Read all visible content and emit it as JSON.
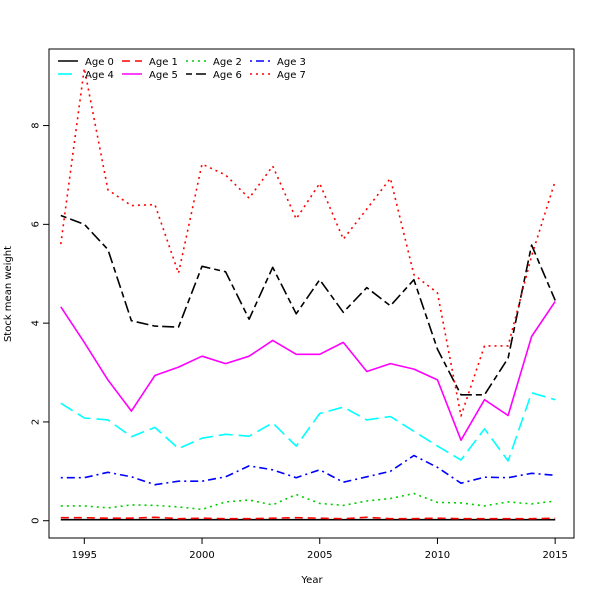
{
  "chart_data": {
    "type": "line",
    "title": "",
    "xlabel": "Year",
    "ylabel": "Stock mean weight",
    "xlim": [
      1993.5,
      2015.8
    ],
    "ylim": [
      -0.35,
      9.55
    ],
    "x_ticks": [
      1995,
      2000,
      2005,
      2010,
      2015
    ],
    "y_ticks": [
      0,
      2,
      4,
      6,
      8
    ],
    "grid": false,
    "legend_position": "top-left",
    "x": [
      1994,
      1995,
      1996,
      1997,
      1998,
      1999,
      2000,
      2001,
      2002,
      2003,
      2004,
      2005,
      2006,
      2007,
      2008,
      2009,
      2010,
      2011,
      2012,
      2013,
      2014,
      2015
    ],
    "series": [
      {
        "name": "Age 0",
        "color": "#000000",
        "dash": "solid",
        "values": [
          0.02,
          0.02,
          0.02,
          0.02,
          0.02,
          0.02,
          0.02,
          0.02,
          0.02,
          0.02,
          0.02,
          0.02,
          0.02,
          0.02,
          0.02,
          0.02,
          0.02,
          0.02,
          0.02,
          0.02,
          0.02,
          0.02
        ]
      },
      {
        "name": "Age 1",
        "color": "#ff0000",
        "dash": "dashed",
        "values": [
          0.06,
          0.06,
          0.05,
          0.05,
          0.07,
          0.04,
          0.05,
          0.04,
          0.04,
          0.05,
          0.06,
          0.05,
          0.04,
          0.07,
          0.04,
          0.04,
          0.05,
          0.04,
          0.04,
          0.04,
          0.04,
          0.05
        ]
      },
      {
        "name": "Age 2",
        "color": "#00cd00",
        "dash": "dotted",
        "values": [
          0.3,
          0.3,
          0.26,
          0.32,
          0.31,
          0.28,
          0.23,
          0.38,
          0.42,
          0.32,
          0.53,
          0.35,
          0.31,
          0.4,
          0.45,
          0.55,
          0.37,
          0.36,
          0.3,
          0.38,
          0.34,
          0.4
        ]
      },
      {
        "name": "Age 3",
        "color": "#0000ff",
        "dash": "dotdash",
        "values": [
          0.87,
          0.87,
          0.98,
          0.89,
          0.73,
          0.8,
          0.8,
          0.89,
          1.11,
          1.03,
          0.87,
          1.03,
          0.78,
          0.89,
          1.0,
          1.32,
          1.08,
          0.76,
          0.88,
          0.87,
          0.96,
          0.92
        ]
      },
      {
        "name": "Age 4",
        "color": "#00ffff",
        "dash": "longdash",
        "values": [
          2.38,
          2.08,
          2.04,
          1.7,
          1.89,
          1.46,
          1.67,
          1.75,
          1.71,
          1.98,
          1.51,
          2.17,
          2.3,
          2.04,
          2.11,
          1.81,
          1.51,
          1.23,
          1.86,
          1.21,
          2.59,
          2.45
        ]
      },
      {
        "name": "Age 5",
        "color": "#ff00ff",
        "dash": "solid",
        "values": [
          4.33,
          3.61,
          2.85,
          2.22,
          2.94,
          3.11,
          3.33,
          3.18,
          3.33,
          3.65,
          3.37,
          3.37,
          3.61,
          3.02,
          3.18,
          3.07,
          2.85,
          1.63,
          2.45,
          2.13,
          3.73,
          4.44
        ]
      },
      {
        "name": "Age 6",
        "color": "#000000",
        "dash": "twodash",
        "values": [
          6.18,
          6.0,
          5.49,
          4.05,
          3.94,
          3.92,
          5.15,
          5.04,
          4.08,
          5.13,
          4.19,
          4.88,
          4.22,
          4.72,
          4.35,
          4.88,
          3.47,
          2.55,
          2.55,
          3.29,
          5.58,
          4.46
        ]
      },
      {
        "name": "Age 7",
        "color": "#ff0000",
        "dash": "dotted",
        "values": [
          5.6,
          9.16,
          6.7,
          6.38,
          6.4,
          5.01,
          7.22,
          7.0,
          6.53,
          7.18,
          6.11,
          6.83,
          5.7,
          6.31,
          6.93,
          4.98,
          4.61,
          2.12,
          3.54,
          3.54,
          5.36,
          6.88
        ]
      }
    ]
  }
}
